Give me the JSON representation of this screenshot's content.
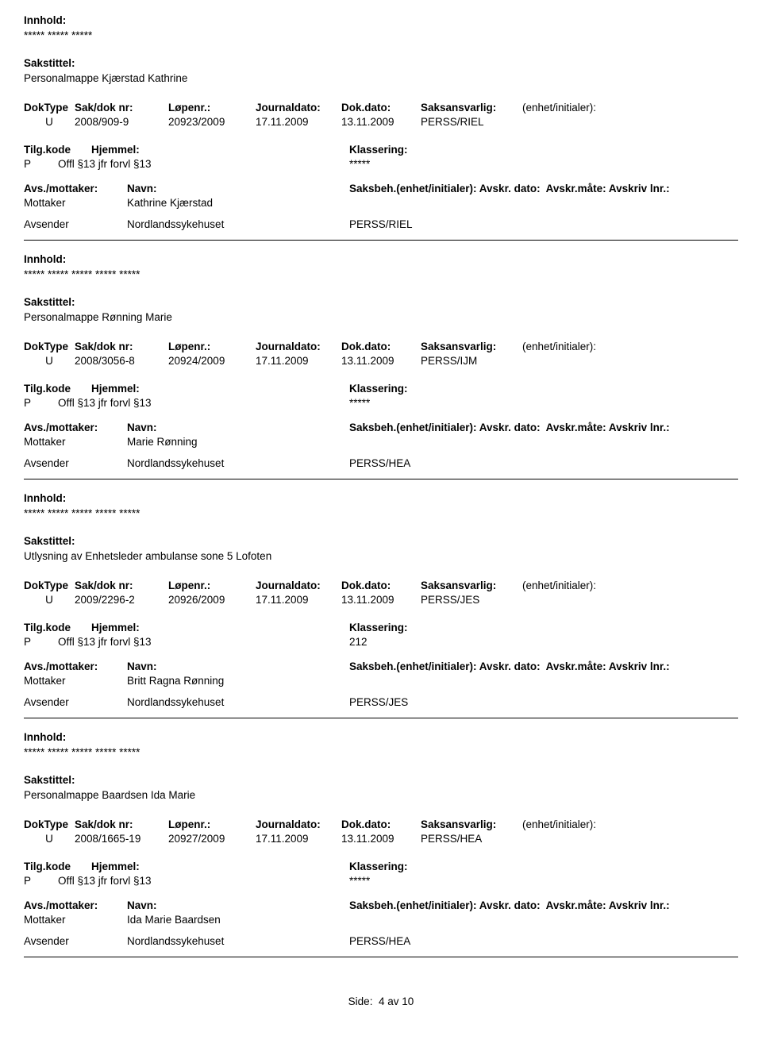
{
  "labels": {
    "innhold": "Innhold:",
    "sakstittel": "Sakstittel:",
    "doktype": "DokType",
    "sakdok": "Sak/dok nr:",
    "lopenr": "Løpenr.:",
    "journaldato": "Journaldato:",
    "dokdato": "Dok.dato:",
    "saksansvarlig": "Saksansvarlig:",
    "enhet": "(enhet/initialer):",
    "tilgkode": "Tilg.kode",
    "hjemmel": "Hjemmel:",
    "klassering": "Klassering:",
    "avsmottaker": "Avs./mottaker:",
    "navn": "Navn:",
    "saksbeh": "Saksbeh.(enhet/initialer):",
    "avskrdato": "Avskr. dato:",
    "avskrmate": "Avskr.måte:",
    "avskrivlnr": "Avskriv lnr.:",
    "mottaker": "Mottaker",
    "avsender": "Avsender"
  },
  "records": [
    {
      "innhold": "***** ***** *****",
      "sakstittel": "Personalmappe Kjærstad Kathrine",
      "doktype": "U",
      "sakdok": "2008/909-9",
      "lopenr": "20923/2009",
      "journaldato": "17.11.2009",
      "dokdato": "13.11.2009",
      "saksansvarlig": "PERSS/RIEL",
      "tilgkode": "P",
      "hjemmel": "Offl §13 jfr forvl §13",
      "klassering": "*****",
      "mottaker_navn": "Kathrine Kjærstad",
      "avsender_navn": "Nordlandssykehuset",
      "avsender_saksbeh": "PERSS/RIEL"
    },
    {
      "innhold": "***** ***** ***** ***** *****",
      "sakstittel": "Personalmappe Rønning Marie",
      "doktype": "U",
      "sakdok": "2008/3056-8",
      "lopenr": "20924/2009",
      "journaldato": "17.11.2009",
      "dokdato": "13.11.2009",
      "saksansvarlig": "PERSS/IJM",
      "tilgkode": "P",
      "hjemmel": "Offl §13 jfr forvl §13",
      "klassering": "*****",
      "mottaker_navn": "Marie Rønning",
      "avsender_navn": "Nordlandssykehuset",
      "avsender_saksbeh": "PERSS/HEA"
    },
    {
      "innhold": "***** ***** ***** ***** *****",
      "sakstittel": "Utlysning av Enhetsleder ambulanse sone 5 Lofoten",
      "doktype": "U",
      "sakdok": "2009/2296-2",
      "lopenr": "20926/2009",
      "journaldato": "17.11.2009",
      "dokdato": "13.11.2009",
      "saksansvarlig": "PERSS/JES",
      "tilgkode": "P",
      "hjemmel": "Offl §13 jfr forvl §13",
      "klassering": "212",
      "mottaker_navn": "Britt Ragna Rønning",
      "avsender_navn": "Nordlandssykehuset",
      "avsender_saksbeh": "PERSS/JES"
    },
    {
      "innhold": "***** ***** ***** ***** *****",
      "sakstittel": "Personalmappe Baardsen Ida Marie",
      "doktype": "U",
      "sakdok": "2008/1665-19",
      "lopenr": "20927/2009",
      "journaldato": "17.11.2009",
      "dokdato": "13.11.2009",
      "saksansvarlig": "PERSS/HEA",
      "tilgkode": "P",
      "hjemmel": "Offl §13 jfr forvl §13",
      "klassering": "*****",
      "mottaker_navn": "Ida Marie Baardsen",
      "avsender_navn": "Nordlandssykehuset",
      "avsender_saksbeh": "PERSS/HEA"
    }
  ],
  "footer": {
    "side_label": "Side:",
    "page_current": "4",
    "av": "av",
    "page_total": "10"
  }
}
